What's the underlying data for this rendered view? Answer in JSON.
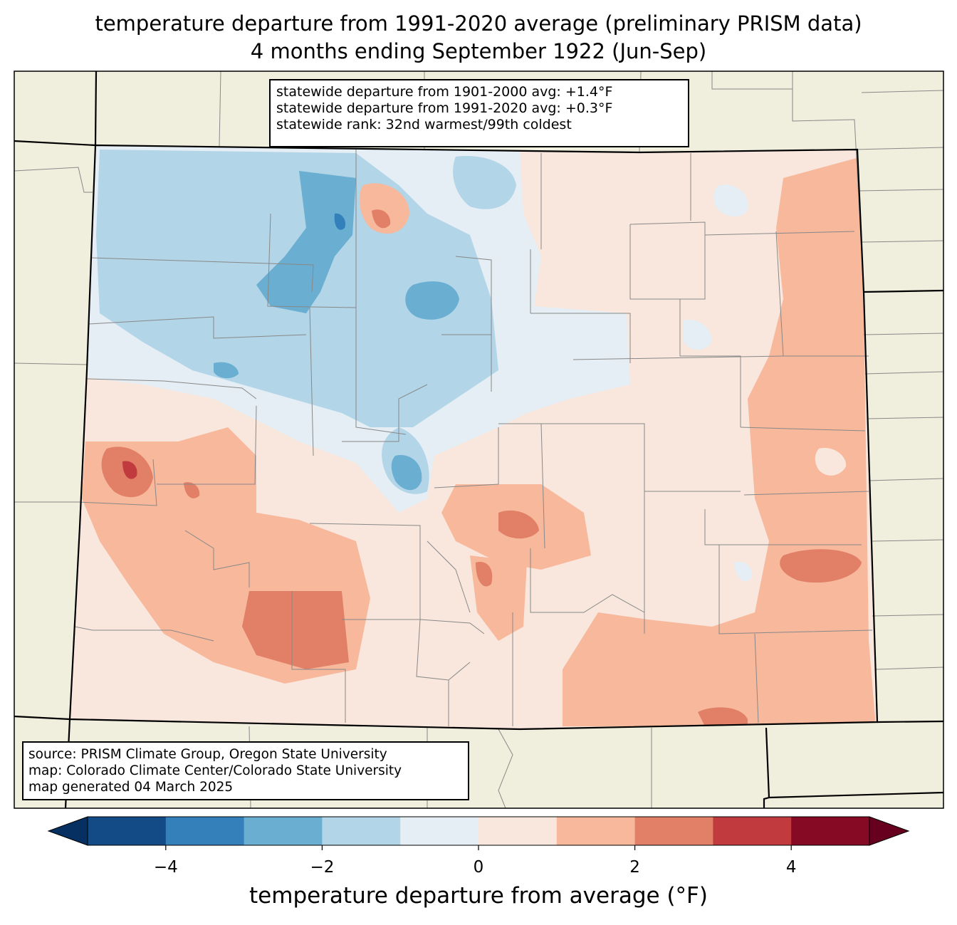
{
  "title": {
    "line1": "temperature departure from 1991-2020 average (preliminary PRISM data)",
    "line2": "4 months ending September 1922 (Jun-Sep)"
  },
  "stats": {
    "line1": "statewide departure from 1901-2000 avg: +1.4°F",
    "line2": "statewide departure from 1991-2020 avg: +0.3°F",
    "line3": "statewide rank: 32nd warmest/99th coldest"
  },
  "source": {
    "line1": "source: PRISM Climate Group, Oregon State University",
    "line2": "map: Colorado Climate Center/Colorado State University",
    "line3": "map generated 04 March 2025"
  },
  "colorbar": {
    "label": "temperature departure from average (°F)",
    "ticks": [
      "−4",
      "−2",
      "0",
      "2",
      "4"
    ],
    "bins": [
      -5,
      -4,
      -3,
      -2,
      -1,
      0,
      1,
      2,
      3,
      4,
      5
    ],
    "colors": [
      "#134b87",
      "#3480ba",
      "#6aaed2",
      "#b2d5e8",
      "#e5eef4",
      "#f9e7dd",
      "#f7b89c",
      "#e17f67",
      "#c03a3e",
      "#870a24"
    ],
    "under_color": "#053061",
    "over_color": "#67001f"
  },
  "map_colors": {
    "background": "#f0eedc",
    "county_lines": "#888888",
    "state_lines": "#000000"
  }
}
